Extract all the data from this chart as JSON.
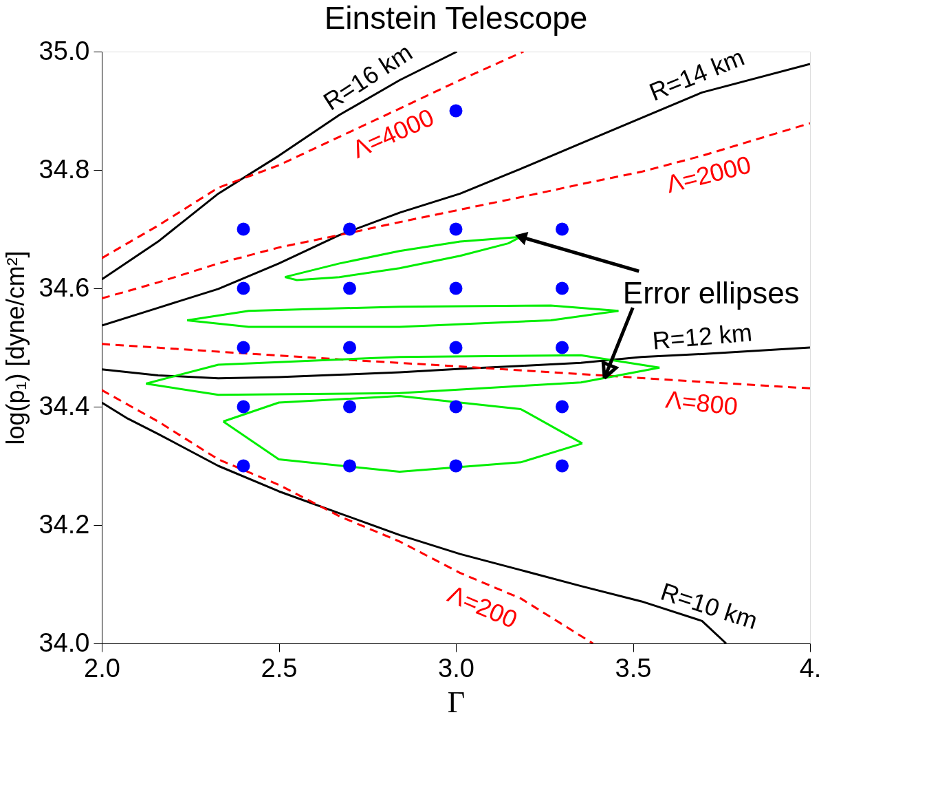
{
  "chart_data": {
    "type": "line",
    "title": "Einstein Telescope",
    "xlabel": "Γ",
    "ylabel": "log(p₁) [dyne/cm²]",
    "xlim": [
      2.0,
      4.0
    ],
    "ylim": [
      34.0,
      35.0
    ],
    "xticks": [
      {
        "value": 2.0,
        "label": "2.0"
      },
      {
        "value": 2.5,
        "label": "2.5"
      },
      {
        "value": 3.0,
        "label": "3.0"
      },
      {
        "value": 3.5,
        "label": "3.5"
      },
      {
        "value": 4.0,
        "label": "4."
      }
    ],
    "yticks": [
      {
        "value": 34.0,
        "label": "34.0"
      },
      {
        "value": 34.2,
        "label": "34.2"
      },
      {
        "value": 34.4,
        "label": "34.4"
      },
      {
        "value": 34.6,
        "label": "34.6"
      },
      {
        "value": 34.8,
        "label": "34.8"
      },
      {
        "value": 35.0,
        "label": "35.0"
      }
    ],
    "grid": false,
    "marker": "none",
    "annotations": [
      {
        "text": "Error ellipses",
        "x": 3.183,
        "y": 34.687
      }
    ],
    "series": [
      {
        "name": "R=16 km",
        "color": "#000000",
        "line_style": "solid",
        "x": [
          2.0,
          2.159,
          2.329,
          2.5,
          2.671,
          2.842,
          3.003
        ],
        "values": [
          34.615,
          34.679,
          34.76,
          34.824,
          34.893,
          34.952,
          35.0
        ]
      },
      {
        "name": "Λ=4000",
        "color": "#ff0000",
        "line_style": "dashed",
        "x": [
          2.0,
          2.159,
          2.329,
          2.5,
          2.671,
          2.842,
          3.012,
          3.191
        ],
        "values": [
          34.651,
          34.706,
          34.77,
          34.808,
          34.856,
          34.904,
          34.952,
          35.0
        ]
      },
      {
        "name": "R=14 km",
        "color": "#000000",
        "line_style": "solid",
        "x": [
          2.0,
          2.159,
          2.329,
          2.5,
          2.671,
          2.842,
          3.012,
          3.183,
          3.353,
          3.524,
          3.695,
          4.0
        ],
        "values": [
          34.537,
          34.567,
          34.599,
          34.642,
          34.69,
          34.728,
          34.76,
          34.802,
          34.845,
          34.888,
          34.931,
          34.979
        ]
      },
      {
        "name": "Λ=2000",
        "color": "#ff0000",
        "line_style": "dashed",
        "x": [
          2.0,
          2.159,
          2.329,
          2.5,
          2.671,
          2.842,
          3.012,
          3.183,
          3.353,
          3.524,
          3.695,
          4.0
        ],
        "values": [
          34.583,
          34.61,
          34.642,
          34.669,
          34.69,
          34.712,
          34.733,
          34.754,
          34.776,
          34.797,
          34.824,
          34.879
        ]
      },
      {
        "name": "R=12 km",
        "color": "#000000",
        "line_style": "solid",
        "x": [
          2.0,
          2.159,
          2.329,
          2.5,
          2.671,
          2.842,
          3.012,
          3.183,
          3.353,
          3.524,
          3.695,
          4.0
        ],
        "values": [
          34.463,
          34.453,
          34.448,
          34.45,
          34.454,
          34.458,
          34.464,
          34.469,
          34.474,
          34.484,
          34.489,
          34.5
        ]
      },
      {
        "name": "Λ=800",
        "color": "#ff0000",
        "line_style": "dashed",
        "x": [
          2.0,
          2.329,
          2.671,
          3.012,
          3.353,
          3.695,
          4.0
        ],
        "values": [
          34.506,
          34.493,
          34.48,
          34.468,
          34.455,
          34.442,
          34.431
        ]
      },
      {
        "name": "R=10 km",
        "color": "#000000",
        "line_style": "solid",
        "x": [
          2.0,
          2.073,
          2.159,
          2.329,
          2.5,
          2.671,
          2.842,
          3.012,
          3.183,
          3.353,
          3.524,
          3.695,
          3.763
        ],
        "values": [
          34.407,
          34.38,
          34.354,
          34.3,
          34.257,
          34.22,
          34.183,
          34.151,
          34.124,
          34.097,
          34.071,
          34.038,
          34.0
        ]
      },
      {
        "name": "Λ=200",
        "color": "#ff0000",
        "line_style": "dashed",
        "x": [
          2.0,
          2.159,
          2.329,
          2.5,
          2.671,
          2.842,
          3.012,
          3.183,
          3.387
        ],
        "values": [
          34.428,
          34.375,
          34.311,
          34.268,
          34.215,
          34.172,
          34.119,
          34.076,
          34.0
        ]
      },
      {
        "color": "#00ee00",
        "line_style": "solid",
        "x": [
          2.517,
          2.671,
          2.841,
          3.012,
          3.183
        ],
        "values": [
          34.619,
          34.642,
          34.663,
          34.679,
          34.687
        ]
      },
      {
        "color": "#00ee00",
        "line_style": "solid",
        "x": [
          2.517,
          2.551,
          2.671,
          2.841,
          3.012,
          3.148,
          3.183
        ],
        "values": [
          34.619,
          34.614,
          34.619,
          34.634,
          34.655,
          34.676,
          34.687
        ]
      },
      {
        "color": "#00ee00",
        "line_style": "solid",
        "x": [
          2.241,
          2.415,
          2.841,
          3.268,
          3.459
        ],
        "values": [
          34.546,
          34.562,
          34.569,
          34.571,
          34.562
        ]
      },
      {
        "color": "#00ee00",
        "line_style": "solid",
        "x": [
          2.241,
          2.415,
          2.841,
          3.268,
          3.459
        ],
        "values": [
          34.546,
          34.535,
          34.535,
          34.546,
          34.562
        ]
      },
      {
        "color": "#00ee00",
        "line_style": "solid",
        "x": [
          2.125,
          2.329,
          2.841,
          3.353,
          3.575
        ],
        "values": [
          34.439,
          34.471,
          34.484,
          34.487,
          34.466
        ]
      },
      {
        "color": "#00ee00",
        "line_style": "solid",
        "x": [
          2.125,
          2.329,
          2.841,
          3.353,
          3.575
        ],
        "values": [
          34.439,
          34.42,
          34.423,
          34.441,
          34.466
        ]
      },
      {
        "color": "#00ee00",
        "line_style": "solid",
        "x": [
          2.343,
          2.5,
          2.841,
          3.183,
          3.357
        ],
        "values": [
          34.375,
          34.407,
          34.418,
          34.396,
          34.338
        ]
      },
      {
        "color": "#00ee00",
        "line_style": "solid",
        "x": [
          2.343,
          2.5,
          2.841,
          3.183,
          3.357
        ],
        "values": [
          34.375,
          34.311,
          34.29,
          34.306,
          34.338
        ]
      },
      {
        "type": "scatter",
        "marker": "circle",
        "color": "#0000ff",
        "x": [
          2.4,
          2.7,
          3.0,
          3.3,
          2.4,
          2.7,
          3.0,
          3.3,
          2.4,
          2.7,
          3.0,
          3.3,
          2.4,
          2.7,
          3.0,
          3.3,
          2.4,
          2.7,
          3.0,
          3.3,
          3.0
        ],
        "values": [
          34.3,
          34.3,
          34.3,
          34.3,
          34.4,
          34.4,
          34.4,
          34.4,
          34.5,
          34.5,
          34.5,
          34.5,
          34.6,
          34.6,
          34.6,
          34.6,
          34.7,
          34.7,
          34.7,
          34.7,
          34.9
        ]
      }
    ]
  }
}
